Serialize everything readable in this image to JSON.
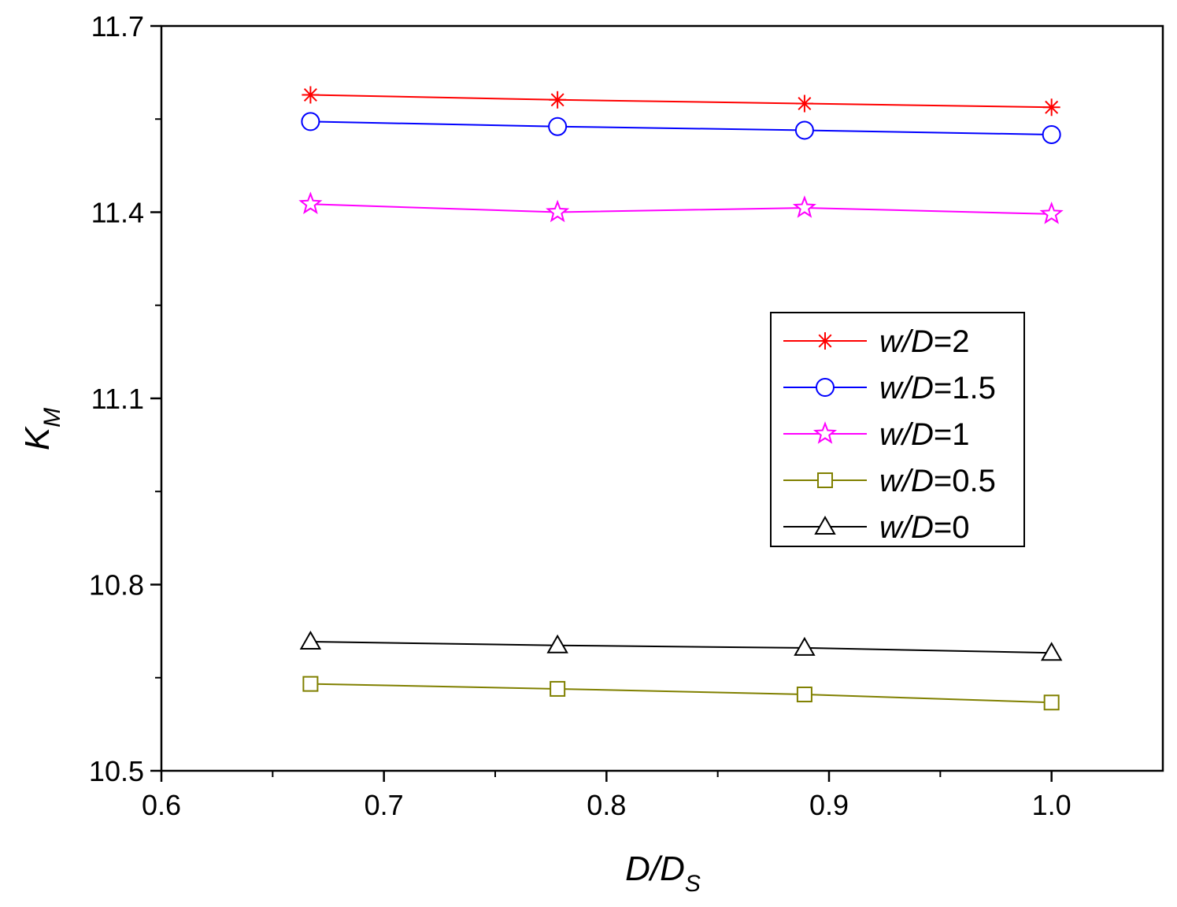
{
  "chart_data": {
    "type": "line",
    "title": "",
    "xlabel": "D/D",
    "xlabel_sub": "S",
    "ylabel": "K",
    "ylabel_sub": "M",
    "xlim": [
      0.6,
      1.05
    ],
    "ylim": [
      10.5,
      11.7
    ],
    "xticks": [
      "0.6",
      "0.7",
      "0.8",
      "0.9",
      "1.0"
    ],
    "xtick_values": [
      0.6,
      0.7,
      0.8,
      0.9,
      1.0
    ],
    "yticks": [
      "10.5",
      "10.8",
      "11.1",
      "11.4",
      "11.7"
    ],
    "ytick_values": [
      10.5,
      10.8,
      11.1,
      11.4,
      11.7
    ],
    "x": [
      0.667,
      0.778,
      0.889,
      1.0
    ],
    "grid": false,
    "legend_position": "center-right",
    "series": [
      {
        "name": "w/D=2",
        "var": "w/D",
        "rhs": "=2",
        "color": "#ff0000",
        "marker": "asterisk",
        "values": [
          11.589,
          11.581,
          11.575,
          11.569
        ]
      },
      {
        "name": "w/D=1.5",
        "var": "w/D",
        "rhs": "=1.5",
        "color": "#0000ff",
        "marker": "circle",
        "values": [
          11.546,
          11.538,
          11.532,
          11.525
        ]
      },
      {
        "name": "w/D=1",
        "var": "w/D",
        "rhs": "=1",
        "color": "#ff00ff",
        "marker": "star",
        "values": [
          11.413,
          11.4,
          11.407,
          11.397
        ]
      },
      {
        "name": "w/D=0.5",
        "var": "w/D",
        "rhs": "=0.5",
        "color": "#808000",
        "marker": "square",
        "values": [
          10.64,
          10.632,
          10.623,
          10.61
        ]
      },
      {
        "name": "w/D=0",
        "var": "w/D",
        "rhs": "=0",
        "color": "#000000",
        "marker": "triangle",
        "values": [
          10.708,
          10.702,
          10.698,
          10.69
        ]
      }
    ]
  }
}
